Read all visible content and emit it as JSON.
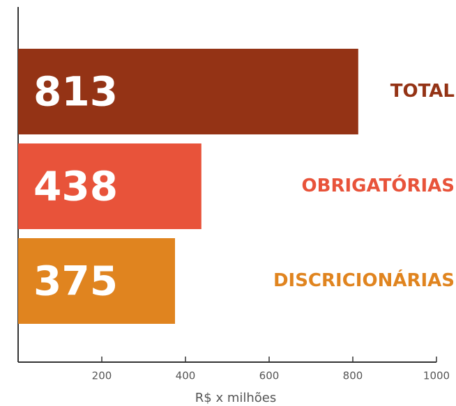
{
  "chart_data": {
    "type": "hbar",
    "categories": [
      "TOTAL",
      "OBRIGATÓRIAS",
      "DISCRICIONÁRIAS"
    ],
    "values": [
      813,
      438,
      375
    ],
    "colors": [
      "#943315",
      "#e8533a",
      "#e0841f"
    ],
    "xlim": [
      0,
      1000
    ],
    "xticks": [
      200,
      400,
      600,
      800,
      1000
    ],
    "xlabel": "R$ x milhões"
  }
}
